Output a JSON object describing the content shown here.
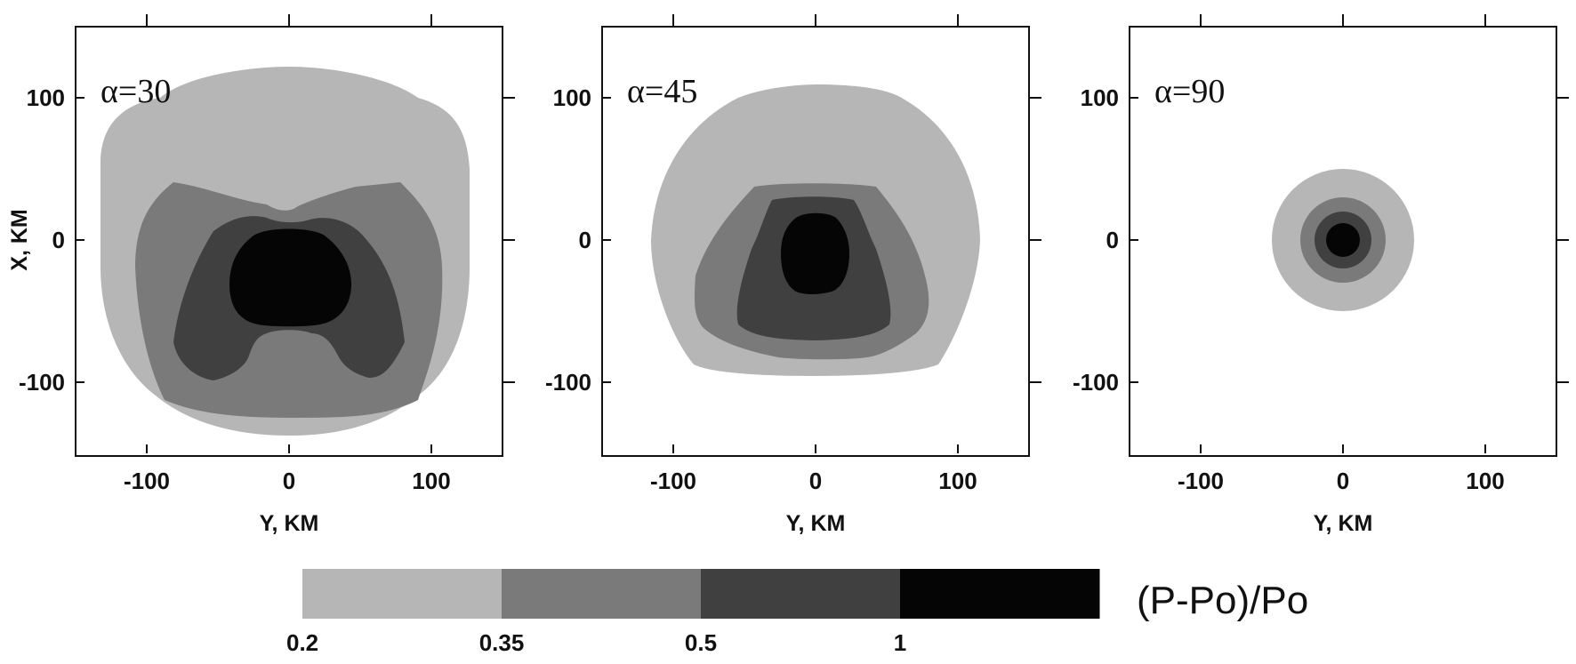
{
  "chart_data": [
    {
      "type": "contour",
      "panel_label": "α=30",
      "xlabel": "Y, KM",
      "ylabel": "X, KM",
      "xlim": [
        -150,
        150
      ],
      "ylim": [
        -150,
        150
      ],
      "xticks": [
        -100,
        0,
        100
      ],
      "yticks": [
        -100,
        0,
        100
      ],
      "levels": [
        {
          "min": 0.2,
          "max": 0.35,
          "extent_y": [
            -135,
            135
          ],
          "extent_x": [
            -137,
            128
          ]
        },
        {
          "min": 0.35,
          "max": 0.5,
          "extent_y": [
            -107,
            107
          ],
          "extent_x": [
            -120,
            42
          ]
        },
        {
          "min": 0.5,
          "max": 1,
          "extent_y": [
            -80,
            80
          ],
          "extent_x": [
            -95,
            28
          ]
        },
        {
          "min": 1,
          "max": null,
          "extent_y": [
            -40,
            40
          ],
          "extent_x": [
            -50,
            10
          ]
        }
      ]
    },
    {
      "type": "contour",
      "panel_label": "α=45",
      "xlabel": "Y, KM",
      "ylabel": "",
      "xlim": [
        -150,
        150
      ],
      "ylim": [
        -150,
        150
      ],
      "xticks": [
        -100,
        0,
        100
      ],
      "yticks": [
        -100,
        0,
        100
      ],
      "levels": [
        {
          "min": 0.2,
          "max": 0.35,
          "extent_y": [
            -115,
            115
          ],
          "extent_x": [
            -95,
            108
          ]
        },
        {
          "min": 0.35,
          "max": 0.5,
          "extent_y": [
            -85,
            85
          ],
          "extent_x": [
            -85,
            38
          ]
        },
        {
          "min": 0.5,
          "max": 1,
          "extent_y": [
            -58,
            58
          ],
          "extent_x": [
            -72,
            30
          ]
        },
        {
          "min": 1,
          "max": null,
          "extent_y": [
            -25,
            25
          ],
          "extent_x": [
            -35,
            15
          ]
        }
      ]
    },
    {
      "type": "contour",
      "panel_label": "α=90",
      "xlabel": "Y, KM",
      "ylabel": "",
      "xlim": [
        -150,
        150
      ],
      "ylim": [
        -150,
        150
      ],
      "xticks": [
        -100,
        0,
        100
      ],
      "yticks": [
        -100,
        0,
        100
      ],
      "levels": [
        {
          "min": 0.2,
          "max": 0.35,
          "radius": 50
        },
        {
          "min": 0.35,
          "max": 0.5,
          "radius": 30
        },
        {
          "min": 0.5,
          "max": 1,
          "radius": 20
        },
        {
          "min": 1,
          "max": null,
          "radius": 12
        }
      ]
    }
  ],
  "colorbar": {
    "title": "(P-Po)/Po",
    "tick_labels": [
      "0.2",
      "0.35",
      "0.5",
      "1"
    ],
    "colors": [
      "#b6b6b6",
      "#7a7a7a",
      "#404040",
      "#050505"
    ]
  }
}
